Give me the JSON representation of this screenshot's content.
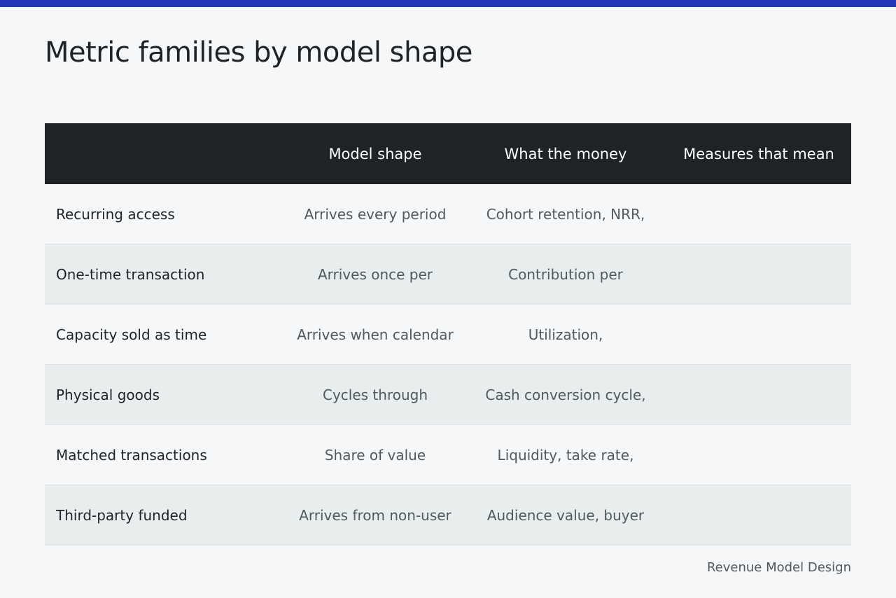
{
  "title": "Metric families by model shape",
  "table": {
    "headers": [
      "",
      "Model shape",
      "What the money",
      "Measures that mean"
    ],
    "rows": [
      {
        "label": "Recurring access",
        "model_shape": "Arrives every period",
        "money": "Cohort retention, NRR,",
        "measures": ""
      },
      {
        "label": "One-time transaction",
        "model_shape": "Arrives once per",
        "money": "Contribution per",
        "measures": ""
      },
      {
        "label": "Capacity sold as time",
        "model_shape": "Arrives when calendar",
        "money": "Utilization,",
        "measures": ""
      },
      {
        "label": "Physical goods",
        "model_shape": "Cycles through",
        "money": "Cash conversion cycle,",
        "measures": ""
      },
      {
        "label": "Matched transactions",
        "model_shape": "Share of value",
        "money": "Liquidity, take rate,",
        "measures": ""
      },
      {
        "label": "Third-party funded",
        "model_shape": "Arrives from non-user",
        "money": "Audience value, buyer",
        "measures": ""
      }
    ]
  },
  "footer": "Revenue Model Design",
  "colors": {
    "accent_bar": "#2437b8",
    "header_bg": "#1d2326",
    "page_bg": "#f5f7f9",
    "alt_row_bg": "#e8edee"
  }
}
